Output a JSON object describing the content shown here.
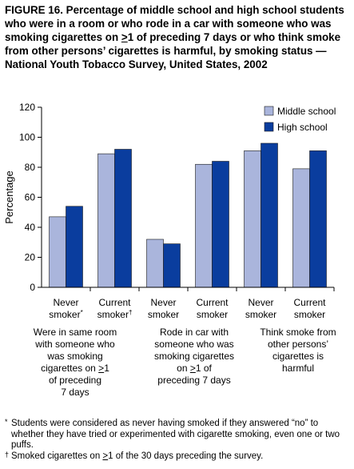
{
  "figure": {
    "title_parts": [
      "FIGURE 16. Percentage of middle school and high school students who were in a room or who rode in a car with someone who was smoking cigarettes on ",
      ">",
      "1 of preceding 7 days or who think smoke from other persons’ cigarettes is harmful, by smoking status — National Youth Tobacco Survey, United States, 2002"
    ]
  },
  "chart_data": {
    "type": "bar",
    "title": "",
    "ylabel": "Percentage",
    "xlabel": "",
    "ylim": [
      0,
      120
    ],
    "yticks": [
      0,
      20,
      40,
      60,
      80,
      100,
      120
    ],
    "grid": false,
    "legend_position": "top-right",
    "categories": [
      {
        "line1": "Never",
        "line2": "smoker",
        "mark": "*"
      },
      {
        "line1": "Current",
        "line2": "smoker",
        "mark": "†"
      },
      {
        "line1": "Never",
        "line2": "smoker",
        "mark": ""
      },
      {
        "line1": "Current",
        "line2": "smoker",
        "mark": ""
      },
      {
        "line1": "Never",
        "line2": "smoker",
        "mark": ""
      },
      {
        "line1": "Current",
        "line2": "smoker",
        "mark": ""
      }
    ],
    "series": [
      {
        "name": "Middle school",
        "color": "#aab5dc",
        "values": [
          47,
          89,
          32,
          82,
          91,
          79
        ]
      },
      {
        "name": "High school",
        "color": "#0a3d9e",
        "values": [
          54,
          92,
          29,
          84,
          96,
          91
        ]
      }
    ],
    "groups": [
      {
        "parts": [
          "Were in same room",
          "with someone who",
          "was smoking",
          "cigarettes on ",
          ">",
          "1",
          "of preceding",
          "7 days"
        ]
      },
      {
        "parts": [
          "Rode in car with",
          "someone who was",
          "smoking cigarettes",
          "on ",
          ">",
          "1 of",
          "preceding 7 days"
        ]
      },
      {
        "parts": [
          "Think smoke from",
          "other persons’",
          "cigarettes is",
          "harmful"
        ]
      }
    ]
  },
  "footnotes": {
    "note1_mark": "*",
    "note1_text": "Students were considered as never having smoked if they answered “no” to whether they have tried or experimented with cigarette smoking, even one or two puffs.",
    "note2_mark": "†",
    "note2_pre": "Smoked cigarettes on ",
    "note2_sym": ">",
    "note2_post": "1 of the 30 days preceding the survey."
  }
}
